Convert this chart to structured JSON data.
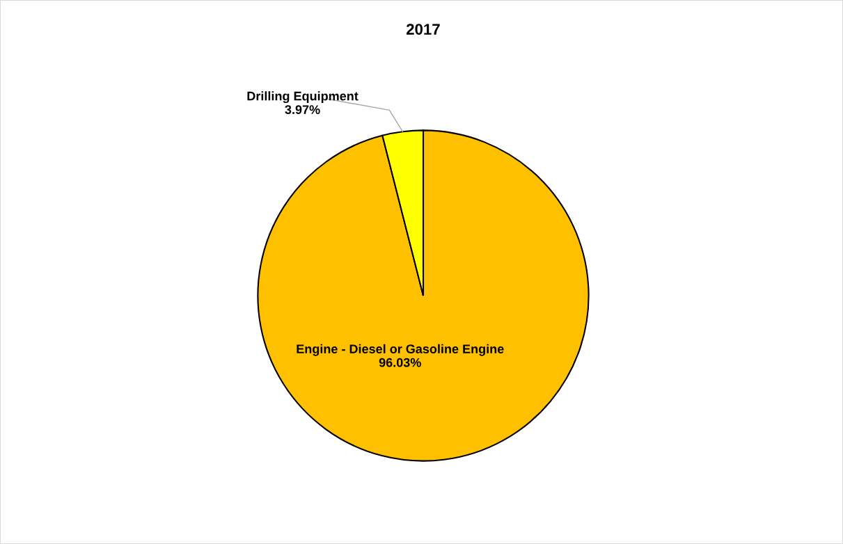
{
  "chart_data": {
    "type": "pie",
    "title": "2017",
    "categories": [
      "Engine - Diesel or Gasoline Engine",
      "Drilling Equipment"
    ],
    "values": [
      96.03,
      3.97
    ],
    "colors": [
      "#ffc000",
      "#ffff00"
    ],
    "value_labels": [
      "96.03%",
      "3.97%"
    ],
    "legend": false
  }
}
